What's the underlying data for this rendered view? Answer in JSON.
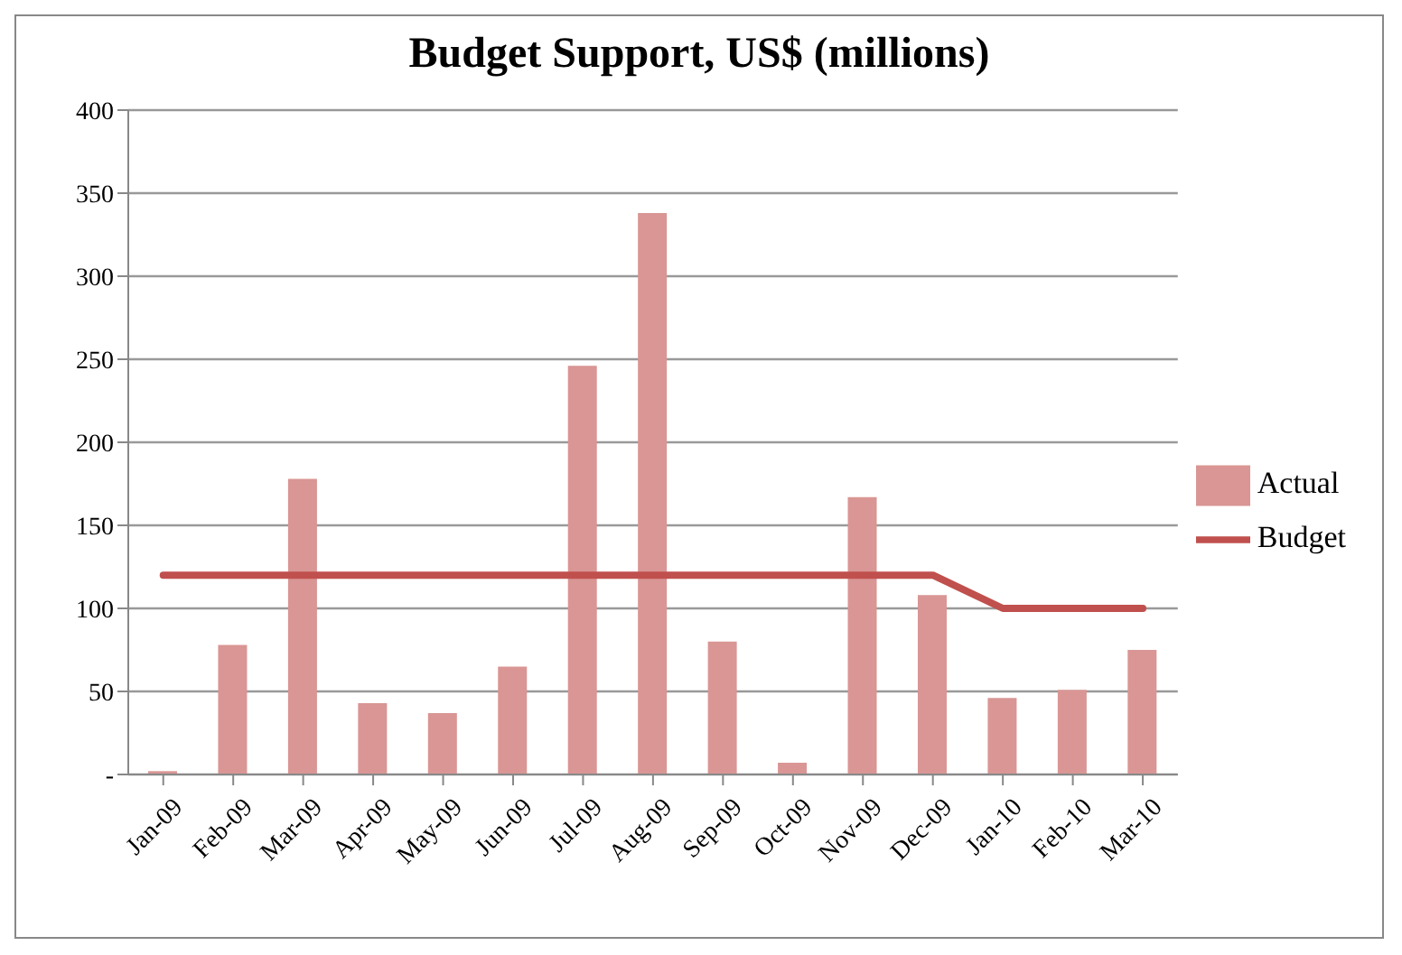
{
  "chart_data": {
    "type": "bar",
    "title": "Budget Support, US$ (millions)",
    "categories": [
      "Jan-09",
      "Feb-09",
      "Mar-09",
      "Apr-09",
      "May-09",
      "Jun-09",
      "Jul-09",
      "Aug-09",
      "Sep-09",
      "Oct-09",
      "Nov-09",
      "Dec-09",
      "Jan-10",
      "Feb-10",
      "Mar-10"
    ],
    "series": [
      {
        "name": "Actual",
        "color": "#d99694",
        "values": [
          2,
          78,
          178,
          43,
          37,
          65,
          246,
          338,
          80,
          7,
          167,
          108,
          46,
          51,
          75
        ]
      },
      {
        "name": "Budget",
        "type": "line",
        "color": "#c0504d",
        "values": [
          120,
          120,
          120,
          120,
          120,
          120,
          120,
          120,
          120,
          120,
          120,
          120,
          100,
          100,
          100
        ]
      }
    ],
    "ylim": [
      0,
      400
    ],
    "yticks": [
      {
        "value": 0,
        "label": "-"
      },
      50,
      100,
      150,
      200,
      250,
      300,
      350,
      400
    ],
    "grid": "y",
    "legend": "right",
    "marker": "none",
    "line_style": "solid"
  }
}
